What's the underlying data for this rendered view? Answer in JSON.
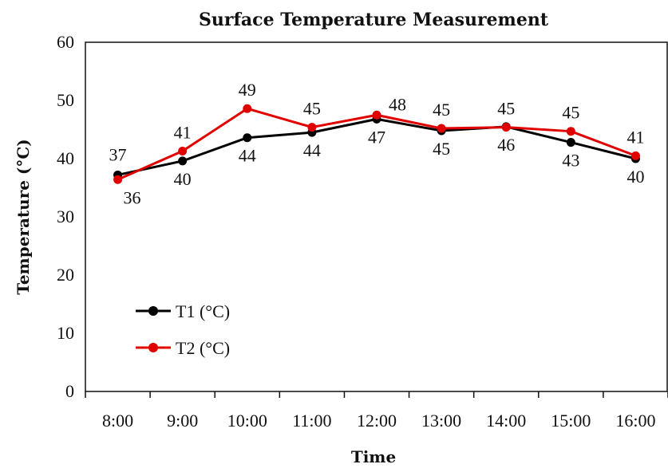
{
  "chart_data": {
    "type": "line",
    "title": "Surface Temperature Measurement",
    "xlabel": "Time",
    "ylabel": "Temperature (°C)",
    "categories": [
      "8:00",
      "9:00",
      "10:00",
      "11:00",
      "12:00",
      "13:00",
      "14:00",
      "15:00",
      "16:00"
    ],
    "ylim": [
      0,
      60
    ],
    "yticks": [
      "0",
      "10",
      "20",
      "30",
      "40",
      "50",
      "60"
    ],
    "grid": false,
    "legend_position": "lower-left",
    "series": [
      {
        "name": "T1 (°C)",
        "color": "#000000",
        "values": [
          37.2,
          39.6,
          43.6,
          44.5,
          46.8,
          44.8,
          45.5,
          42.8,
          40.0
        ],
        "labels": [
          "37",
          "40",
          "44",
          "44",
          "47",
          "45",
          "46",
          "43",
          "40"
        ]
      },
      {
        "name": "T2 (°C)",
        "color": "#e00000",
        "values": [
          36.4,
          41.3,
          48.6,
          45.4,
          47.5,
          45.2,
          45.4,
          44.7,
          40.5
        ],
        "labels": [
          "36",
          "41",
          "49",
          "45",
          "48",
          "45",
          "45",
          "45",
          "41"
        ]
      }
    ]
  }
}
